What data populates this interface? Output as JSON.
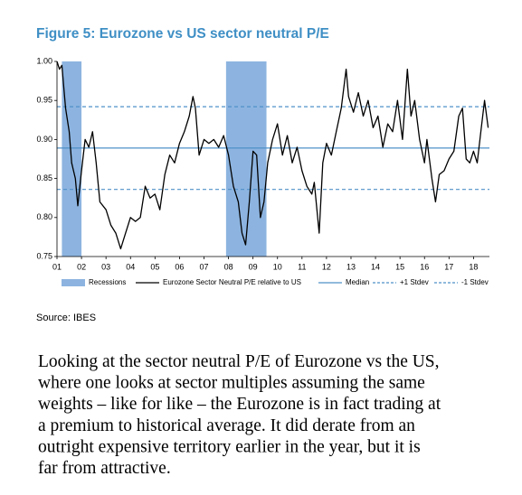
{
  "chart_data": {
    "type": "line",
    "title": "Figure 5: Eurozone vs US sector neutral P/E",
    "source": "Source: IBES",
    "xlim": [
      2001,
      2018.65
    ],
    "xticks": [
      {
        "value": 2001,
        "label": "01"
      },
      {
        "value": 2002,
        "label": "02"
      },
      {
        "value": 2003,
        "label": "03"
      },
      {
        "value": 2004,
        "label": "04"
      },
      {
        "value": 2005,
        "label": "05"
      },
      {
        "value": 2006,
        "label": "06"
      },
      {
        "value": 2007,
        "label": "07"
      },
      {
        "value": 2008,
        "label": "08"
      },
      {
        "value": 2009,
        "label": "09"
      },
      {
        "value": 2010,
        "label": "10"
      },
      {
        "value": 2011,
        "label": "11"
      },
      {
        "value": 2012,
        "label": "12"
      },
      {
        "value": 2013,
        "label": "13"
      },
      {
        "value": 2014,
        "label": "14"
      },
      {
        "value": 2015,
        "label": "15"
      },
      {
        "value": 2016,
        "label": "16"
      },
      {
        "value": 2017,
        "label": "17"
      },
      {
        "value": 2018,
        "label": "18"
      }
    ],
    "ylim": [
      0.75,
      1.0
    ],
    "yticks": [
      {
        "value": 0.75,
        "label": "0.75"
      },
      {
        "value": 0.8,
        "label": "0.80"
      },
      {
        "value": 0.85,
        "label": "0.85"
      },
      {
        "value": 0.9,
        "label": "0.90"
      },
      {
        "value": 0.95,
        "label": "0.95"
      },
      {
        "value": 1.0,
        "label": "1.00"
      }
    ],
    "recessions": {
      "name": "Recessions",
      "color": "#8db4e0",
      "spans": [
        [
          2001.2,
          2002.0
        ],
        [
          2007.9,
          2009.55
        ]
      ]
    },
    "series": [
      {
        "name": "Eurozone Sector Neutral P/E relative to US",
        "color": "#000000",
        "x": [
          2001.0,
          2001.1,
          2001.2,
          2001.35,
          2001.5,
          2001.6,
          2001.75,
          2001.85,
          2002.0,
          2002.15,
          2002.3,
          2002.45,
          2002.6,
          2002.75,
          2003.0,
          2003.2,
          2003.4,
          2003.6,
          2003.8,
          2004.0,
          2004.2,
          2004.4,
          2004.6,
          2004.8,
          2005.0,
          2005.2,
          2005.4,
          2005.6,
          2005.8,
          2006.0,
          2006.2,
          2006.4,
          2006.55,
          2006.65,
          2006.8,
          2007.0,
          2007.2,
          2007.4,
          2007.6,
          2007.8,
          2008.0,
          2008.2,
          2008.4,
          2008.55,
          2008.7,
          2008.85,
          2009.0,
          2009.15,
          2009.3,
          2009.45,
          2009.6,
          2009.8,
          2010.0,
          2010.2,
          2010.4,
          2010.6,
          2010.8,
          2011.0,
          2011.2,
          2011.4,
          2011.5,
          2011.7,
          2011.85,
          2012.0,
          2012.2,
          2012.4,
          2012.6,
          2012.8,
          2012.9,
          2013.1,
          2013.3,
          2013.5,
          2013.7,
          2013.9,
          2014.1,
          2014.3,
          2014.5,
          2014.7,
          2014.9,
          2015.1,
          2015.3,
          2015.45,
          2015.6,
          2015.8,
          2016.0,
          2016.1,
          2016.3,
          2016.45,
          2016.6,
          2016.8,
          2017.0,
          2017.2,
          2017.4,
          2017.55,
          2017.7,
          2017.85,
          2018.0,
          2018.15,
          2018.3,
          2018.45,
          2018.6
        ],
        "y": [
          1.0,
          0.99,
          0.995,
          0.94,
          0.91,
          0.87,
          0.85,
          0.815,
          0.86,
          0.9,
          0.89,
          0.91,
          0.87,
          0.82,
          0.81,
          0.79,
          0.78,
          0.76,
          0.78,
          0.8,
          0.795,
          0.8,
          0.84,
          0.825,
          0.83,
          0.81,
          0.855,
          0.88,
          0.87,
          0.895,
          0.91,
          0.93,
          0.955,
          0.94,
          0.88,
          0.9,
          0.895,
          0.9,
          0.89,
          0.905,
          0.88,
          0.84,
          0.82,
          0.78,
          0.765,
          0.82,
          0.885,
          0.88,
          0.8,
          0.82,
          0.87,
          0.9,
          0.92,
          0.88,
          0.905,
          0.87,
          0.89,
          0.86,
          0.84,
          0.83,
          0.845,
          0.78,
          0.87,
          0.895,
          0.88,
          0.91,
          0.94,
          0.99,
          0.955,
          0.935,
          0.96,
          0.93,
          0.95,
          0.915,
          0.93,
          0.89,
          0.92,
          0.91,
          0.95,
          0.9,
          0.99,
          0.93,
          0.95,
          0.9,
          0.87,
          0.9,
          0.85,
          0.82,
          0.855,
          0.86,
          0.875,
          0.885,
          0.93,
          0.94,
          0.875,
          0.87,
          0.885,
          0.87,
          0.91,
          0.95,
          0.915
        ]
      }
    ],
    "reference_lines": [
      {
        "name": "Median",
        "value": 0.889,
        "color": "#4f90c8",
        "dashed": false
      },
      {
        "name": "+1 Stdev",
        "value": 0.942,
        "color": "#4f90c8",
        "dashed": true
      },
      {
        "name": "-1 Stdev",
        "value": 0.836,
        "color": "#4f90c8",
        "dashed": true
      }
    ]
  },
  "paragraph_lines": [
    "Looking at the sector neutral P/E of Eurozone vs the US,",
    "where one looks at sector multiples assuming the same",
    "weights – like for like – the Eurozone is in fact trading at",
    "a premium to historical average. It did derate from an",
    "outright expensive territory earlier in the year, but it is",
    "far from attractive."
  ]
}
